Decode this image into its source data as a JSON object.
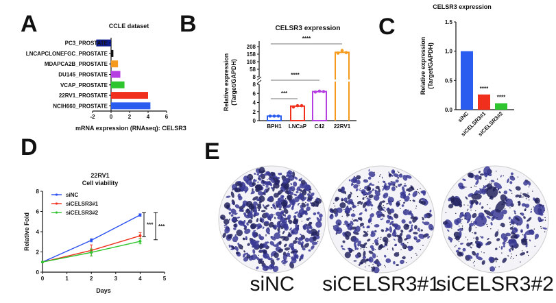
{
  "chart_data": [
    {
      "panel": "A",
      "type": "bar",
      "orientation": "horizontal",
      "title": "CCLE dataset",
      "xlabel": "mRNA expression (RNAseq): CELSR3",
      "categories": [
        "PC3_PROSTATE",
        "LNCAPCLONEFGC_PROSTATE",
        "MDAPCA2B_PROSTATE",
        "DU145_PROSTATE",
        "VCAP_PROSTATE",
        "22RV1_PROSTATE",
        "NCIH660_PROSTATE"
      ],
      "values": [
        -1.6,
        0.25,
        0.75,
        1.0,
        1.45,
        4.0,
        4.25
      ],
      "colors": [
        "#0d1b8c",
        "#111111",
        "#f59a1c",
        "#b53fe0",
        "#2ec52e",
        "#f0301c",
        "#2a5cf0"
      ],
      "xlim": [
        -2,
        6
      ],
      "xticks": [
        "-2",
        "0",
        "2",
        "4",
        "6"
      ]
    },
    {
      "panel": "B",
      "type": "bar",
      "title": "CELSR3 expression",
      "ylabel": "Relative expression (Target/GAPDH)",
      "ylabel_lines": [
        "Relative expression",
        "(Target/GAPDH)"
      ],
      "categories": [
        "BPH1",
        "LNCaP",
        "C42",
        "22RV1"
      ],
      "values": [
        1.0,
        3.2,
        6.4,
        170
      ],
      "points": [
        [
          1.0,
          1.0,
          1.0
        ],
        [
          3.0,
          3.3,
          3.3
        ],
        [
          6.3,
          6.5,
          6.4
        ],
        [
          165,
          182,
          168
        ]
      ],
      "colors": [
        "#2a5cf0",
        "#f0301c",
        "#b53fe0",
        "#f59a1c"
      ],
      "broken_axis": true,
      "yticks_lower": [
        "0",
        "2",
        "4",
        "6",
        "8"
      ],
      "yticks_upper": [
        "8",
        "58",
        "108",
        "158",
        "208"
      ],
      "significance": [
        {
          "from": "BPH1",
          "to": "LNCaP",
          "label": "***"
        },
        {
          "from": "BPH1",
          "to": "C42",
          "label": "****"
        },
        {
          "from": "BPH1",
          "to": "22RV1",
          "label": "****"
        }
      ]
    },
    {
      "panel": "C",
      "type": "bar",
      "title": "CELSR3 expression",
      "ylabel_lines": [
        "Relative expression",
        "(Target/GAPDH)"
      ],
      "categories": [
        "siNC",
        "siCELSR3#1",
        "siCELSR3#2"
      ],
      "values": [
        1.0,
        0.26,
        0.11
      ],
      "colors": [
        "#2a5cf0",
        "#f0301c",
        "#2ec52e"
      ],
      "ylim": [
        0,
        1.5
      ],
      "yticks": [
        "0.0",
        "0.5",
        "1.0",
        "1.5"
      ],
      "annotations": [
        "",
        "****",
        "****"
      ]
    },
    {
      "panel": "D",
      "type": "line",
      "title_lines": [
        "22RV1",
        "Cell viability"
      ],
      "xlabel": "Days",
      "ylabel": "Relative Fold",
      "x": [
        0,
        2,
        4
      ],
      "xlim": [
        0,
        5
      ],
      "ylim": [
        0,
        8
      ],
      "xticks": [
        "0",
        "1",
        "2",
        "3",
        "4",
        "5"
      ],
      "yticks": [
        "0",
        "2",
        "4",
        "6",
        "8"
      ],
      "legend": "top-left",
      "series": [
        {
          "name": "siNC",
          "values": [
            1.0,
            3.15,
            5.65
          ],
          "errors": [
            0.05,
            0.15,
            0.12
          ],
          "color": "#2a4ff0"
        },
        {
          "name": "siCELSR3#1",
          "values": [
            1.0,
            2.15,
            3.6
          ],
          "errors": [
            0.05,
            0.55,
            0.3
          ],
          "color": "#f0301c"
        },
        {
          "name": "siCELSR3#2",
          "values": [
            1.0,
            1.95,
            3.05
          ],
          "errors": [
            0.05,
            0.35,
            0.25
          ],
          "color": "#2ec52e"
        }
      ],
      "significance": [
        {
          "y_range": [
            3.5,
            5.9
          ],
          "label": "***"
        },
        {
          "y_range": [
            3.2,
            5.9
          ],
          "label": "***"
        }
      ]
    }
  ],
  "panel_labels": [
    "A",
    "B",
    "C",
    "D",
    "E"
  ],
  "panel_e": {
    "images": [
      {
        "label": "siNC",
        "density": 1.0
      },
      {
        "label": "siCELSR3#1",
        "density": 0.6
      },
      {
        "label": "siCELSR3#2",
        "density": 0.4
      }
    ],
    "stain_color": "#3a3a96"
  }
}
